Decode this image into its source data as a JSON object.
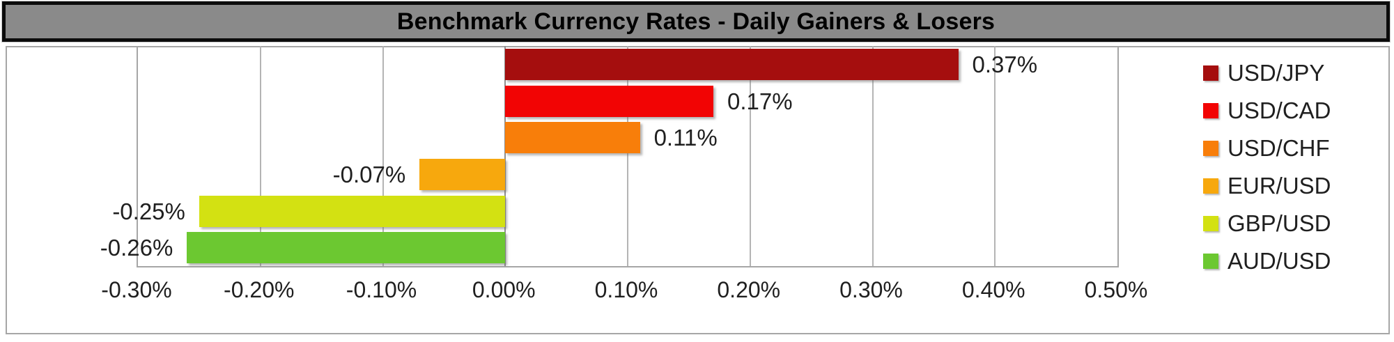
{
  "title": "Benchmark Currency Rates - Daily Gainers & Losers",
  "chart_data": {
    "type": "bar",
    "orientation": "horizontal",
    "title": "Benchmark Currency Rates - Daily Gainers & Losers",
    "xlabel": "",
    "ylabel": "",
    "categories": [
      "USD/JPY",
      "USD/CAD",
      "USD/CHF",
      "EUR/USD",
      "GBP/USD",
      "AUD/USD"
    ],
    "values": [
      0.37,
      0.17,
      0.11,
      -0.07,
      -0.25,
      -0.26
    ],
    "value_labels": [
      "0.37%",
      "0.17%",
      "0.11%",
      "-0.07%",
      "-0.25%",
      "-0.26%"
    ],
    "colors": [
      "#a50e0e",
      "#f20404",
      "#f87e0a",
      "#f7a80d",
      "#d3e112",
      "#6cc831"
    ],
    "xlim": [
      -0.3,
      0.5
    ],
    "x_ticks": [
      -0.3,
      -0.2,
      -0.1,
      0.0,
      0.1,
      0.2,
      0.3,
      0.4,
      0.5
    ],
    "x_tick_labels": [
      "-0.30%",
      "-0.20%",
      "-0.10%",
      "0.00%",
      "0.10%",
      "0.20%",
      "0.30%",
      "0.40%",
      "0.50%"
    ],
    "grid": true,
    "legend_position": "right",
    "style_colors": {
      "title_bar_bg": "#8a8a8a",
      "title_bar_border": "#0b0b0b",
      "container_border": "#a6a6a6",
      "gridline": "#b4b4b4",
      "zero_line": "#8f8f8f",
      "text": "#1f1f1f"
    }
  }
}
